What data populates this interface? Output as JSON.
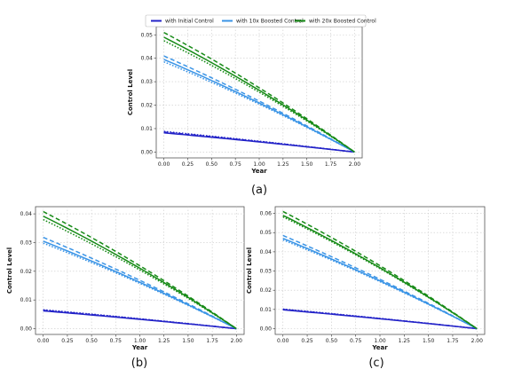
{
  "chart_data": [
    {
      "type": "line",
      "caption": "(a)",
      "xlabel": "Year",
      "ylabel": "Control Level",
      "xlim": [
        -0.08,
        2.08
      ],
      "ylim": [
        -0.0025,
        0.0535
      ],
      "xticks": [
        "0.00",
        "0.25",
        "0.50",
        "0.75",
        "1.00",
        "1.25",
        "1.50",
        "1.75",
        "2.00"
      ],
      "yticks": [
        "0.00",
        "0.01",
        "0.02",
        "0.03",
        "0.04",
        "0.05"
      ],
      "ytick_values": [
        0,
        0.01,
        0.02,
        0.03,
        0.04,
        0.05
      ],
      "grid": true,
      "legend": {
        "placement": "top",
        "entries": [
          {
            "label": "with Initial Control",
            "color": "#2323c8"
          },
          {
            "label": "with 10x Boosted Control",
            "color": "#3a94e6"
          },
          {
            "label": "with 20x Boosted Control",
            "color": "#168a16"
          }
        ]
      },
      "x": [
        0.0,
        2.0
      ],
      "series": [
        {
          "color": "#2323c8",
          "start": [
            0.0082,
            0.0085,
            0.0088
          ],
          "curvature": 0.1
        },
        {
          "color": "#3a94e6",
          "start": [
            0.0395,
            0.041,
            0.0385
          ],
          "curvature": 0.12
        },
        {
          "color": "#168a16",
          "start": [
            0.049,
            0.051,
            0.0475
          ],
          "curvature": 0.15
        }
      ]
    },
    {
      "type": "line",
      "caption": "(b)",
      "xlabel": "Year",
      "ylabel": "Control Level",
      "xlim": [
        -0.08,
        2.08
      ],
      "ylim": [
        -0.002,
        0.0425
      ],
      "xticks": [
        "0.00",
        "0.25",
        "0.50",
        "0.75",
        "1.00",
        "1.25",
        "1.50",
        "1.75",
        "2.00"
      ],
      "yticks": [
        "0.00",
        "0.01",
        "0.02",
        "0.03",
        "0.04"
      ],
      "ytick_values": [
        0,
        0.01,
        0.02,
        0.03,
        0.04
      ],
      "grid": true,
      "x": [
        0.0,
        2.0
      ],
      "series": [
        {
          "color": "#2323c8",
          "start": [
            0.0062,
            0.0064,
            0.0066
          ],
          "curvature": 0.1
        },
        {
          "color": "#3a94e6",
          "start": [
            0.0305,
            0.0318,
            0.0298
          ],
          "curvature": 0.12
        },
        {
          "color": "#168a16",
          "start": [
            0.0392,
            0.0408,
            0.038
          ],
          "curvature": 0.15
        }
      ]
    },
    {
      "type": "line",
      "caption": "(c)",
      "xlabel": "Year",
      "ylabel": "Control Level",
      "xlim": [
        -0.08,
        2.08
      ],
      "ylim": [
        -0.003,
        0.0635
      ],
      "xticks": [
        "0.00",
        "0.25",
        "0.50",
        "0.75",
        "1.00",
        "1.25",
        "1.50",
        "1.75",
        "2.00"
      ],
      "yticks": [
        "0.00",
        "0.01",
        "0.02",
        "0.03",
        "0.04",
        "0.05",
        "0.06"
      ],
      "ytick_values": [
        0,
        0.01,
        0.02,
        0.03,
        0.04,
        0.05,
        0.06
      ],
      "grid": true,
      "x": [
        0.0,
        2.0
      ],
      "series": [
        {
          "color": "#2323c8",
          "start": [
            0.0098,
            0.01,
            0.0102
          ],
          "curvature": 0.1
        },
        {
          "color": "#3a94e6",
          "start": [
            0.047,
            0.0485,
            0.0462
          ],
          "curvature": 0.12
        },
        {
          "color": "#168a16",
          "start": [
            0.059,
            0.061,
            0.0582
          ],
          "curvature": 0.15
        }
      ]
    }
  ]
}
